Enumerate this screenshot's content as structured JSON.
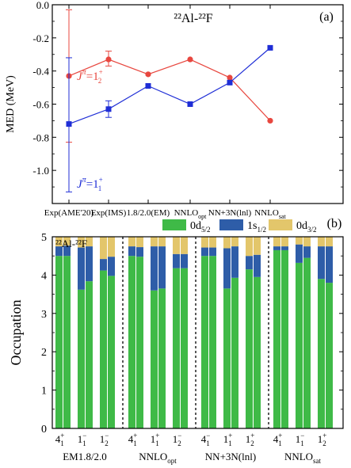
{
  "colors": {
    "red": "#e8473f",
    "blue": "#1f2ed6",
    "d52": "#3fba47",
    "s12": "#2e5da8",
    "d32": "#e3c66b",
    "frame": "#000000"
  },
  "chart_data": [
    {
      "type": "line",
      "panel_tag": "(a)",
      "title": "²²Al-²²F",
      "ylabel": "MED (MeV)",
      "ylim": [
        -1.2,
        0.0
      ],
      "yticks": [
        "0.0",
        "-0.2",
        "-0.4",
        "-0.6",
        "-0.8",
        "-1.0"
      ],
      "ytick_values": [
        0.0,
        -0.2,
        -0.4,
        -0.6,
        -0.8,
        -1.0
      ],
      "categories": [
        {
          "main": "Exp(AME'20)",
          "sub": ""
        },
        {
          "main": "Exp(IMS)",
          "sub": ""
        },
        {
          "main": "1.8/2.0(EM)",
          "sub": ""
        },
        {
          "main": "NNLO",
          "sub": "opt"
        },
        {
          "main": "NN+3N(lnl)",
          "sub": ""
        },
        {
          "main": "NNLO",
          "sub": "sat"
        }
      ],
      "series": [
        {
          "key": "red",
          "label": {
            "pre": "J",
            "pi": "π",
            "eq": "=1",
            "sup": "+",
            "sub": "2"
          },
          "values": [
            -0.43,
            -0.33,
            -0.42,
            -0.33,
            -0.44,
            -0.7
          ],
          "errors": [
            [
              -0.83,
              -0.03
            ],
            [
              -0.37,
              -0.28
            ],
            null,
            null,
            null,
            null
          ]
        },
        {
          "key": "blue",
          "label": {
            "pre": "J",
            "pi": "π",
            "eq": "=1",
            "sup": "+",
            "sub": "1"
          },
          "values": [
            -0.72,
            -0.63,
            -0.49,
            -0.6,
            -0.47,
            -0.26
          ],
          "errors": [
            [
              -1.13,
              -0.32
            ],
            [
              -0.68,
              -0.58
            ],
            null,
            null,
            null,
            null
          ]
        }
      ]
    },
    {
      "type": "bar",
      "stacked": true,
      "panel_tag": "(b)",
      "title": "²²Al-²²F",
      "ylabel": "Occupation",
      "ylim": [
        0,
        5
      ],
      "yticks": [
        "0",
        "1",
        "2",
        "3",
        "4",
        "5"
      ],
      "legend": [
        {
          "key": "d52",
          "pre": "0d",
          "sub": "5/2"
        },
        {
          "key": "s12",
          "pre": "1s",
          "sub": "1/2"
        },
        {
          "key": "d32",
          "pre": "0d",
          "sub": "3/2"
        }
      ],
      "groups": [
        {
          "label": {
            "main": "EM1.8/2.0",
            "sub": ""
          },
          "states": [
            {
              "main": "4",
              "sup": "+",
              "sub": "1",
              "bars": [
                [
                  4.5,
                  0.25,
                  0.25
                ],
                [
                  4.5,
                  0.27,
                  0.23
                ]
              ]
            },
            {
              "main": "1",
              "sup": "−",
              "sub": "1",
              "bars": [
                [
                  3.62,
                  1.1,
                  0.28
                ],
                [
                  3.84,
                  0.91,
                  0.25
                ]
              ]
            },
            {
              "main": "1",
              "sup": "−",
              "sub": "2",
              "bars": [
                [
                  4.12,
                  0.3,
                  0.58
                ],
                [
                  3.98,
                  0.5,
                  0.52
                ]
              ]
            }
          ]
        },
        {
          "label": {
            "main": "NNLO",
            "sub": "opt"
          },
          "states": [
            {
              "main": "4",
              "sup": "+",
              "sub": "1",
              "bars": [
                [
                  4.5,
                  0.25,
                  0.25
                ],
                [
                  4.48,
                  0.25,
                  0.27
                ]
              ]
            },
            {
              "main": "1",
              "sup": "+",
              "sub": "1",
              "bars": [
                [
                  3.6,
                  1.15,
                  0.25
                ],
                [
                  3.65,
                  1.1,
                  0.25
                ]
              ]
            },
            {
              "main": "1",
              "sup": "−",
              "sub": "2",
              "bars": [
                [
                  4.18,
                  0.37,
                  0.45
                ],
                [
                  4.18,
                  0.37,
                  0.45
                ]
              ]
            }
          ]
        },
        {
          "label": {
            "main": "NN+3N(lnl)",
            "sub": ""
          },
          "states": [
            {
              "main": "4",
              "sup": "−",
              "sub": "1",
              "bars": [
                [
                  4.5,
                  0.22,
                  0.28
                ],
                [
                  4.5,
                  0.22,
                  0.28
                ]
              ]
            },
            {
              "main": "1",
              "sup": "+",
              "sub": "1",
              "bars": [
                [
                  3.65,
                  1.05,
                  0.3
                ],
                [
                  3.93,
                  0.82,
                  0.25
                ]
              ]
            },
            {
              "main": "1",
              "sup": "+",
              "sub": "2",
              "bars": [
                [
                  4.15,
                  0.35,
                  0.5
                ],
                [
                  3.95,
                  0.58,
                  0.47
                ]
              ]
            }
          ]
        },
        {
          "label": {
            "main": "NNLO",
            "sub": "sat"
          },
          "states": [
            {
              "main": "4",
              "sup": "+",
              "sub": "1",
              "bars": [
                [
                  4.65,
                  0.1,
                  0.25
                ],
                [
                  4.65,
                  0.1,
                  0.25
                ]
              ]
            },
            {
              "main": "1",
              "sup": "−",
              "sub": "1",
              "bars": [
                [
                  4.32,
                  0.48,
                  0.2
                ],
                [
                  4.45,
                  0.3,
                  0.25
                ]
              ]
            },
            {
              "main": "1",
              "sup": "+",
              "sub": "2",
              "bars": [
                [
                  3.9,
                  0.85,
                  0.25
                ],
                [
                  3.8,
                  0.95,
                  0.25
                ]
              ]
            }
          ]
        }
      ]
    }
  ]
}
